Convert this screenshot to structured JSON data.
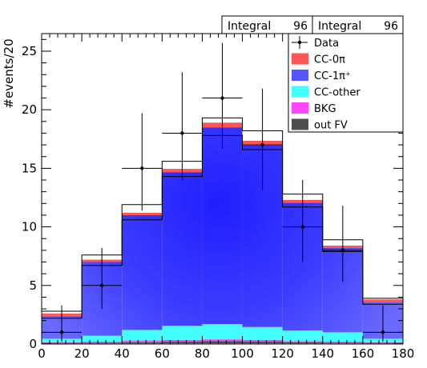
{
  "stat_boxes": [
    {
      "label": "Integral",
      "value": "96"
    },
    {
      "label": "Integral",
      "value": "96"
    }
  ],
  "chart_data": {
    "type": "bar",
    "stacked": true,
    "xlabel": "",
    "ylabel": "#events/20",
    "xlim": [
      0,
      180
    ],
    "ylim": [
      0,
      26.5
    ],
    "x_ticks": [
      0,
      20,
      40,
      60,
      80,
      100,
      120,
      140,
      160,
      180
    ],
    "y_ticks": [
      0,
      5,
      10,
      15,
      20,
      25
    ],
    "bin_edges": [
      0,
      20,
      40,
      60,
      80,
      100,
      120,
      140,
      160,
      180
    ],
    "series": [
      {
        "name": "out FV",
        "color": "#4d4d4d",
        "values": [
          0.1,
          0.1,
          0.15,
          0.2,
          0.25,
          0.2,
          0.15,
          0.1,
          0.1
        ]
      },
      {
        "name": "BKG",
        "color": "#ff44ff",
        "values": [
          0.05,
          0.1,
          0.15,
          0.15,
          0.15,
          0.15,
          0.1,
          0.1,
          0.05
        ]
      },
      {
        "name": "CC-other",
        "color": "#44ffff",
        "values": [
          0.3,
          0.5,
          0.9,
          1.2,
          1.3,
          1.1,
          0.9,
          0.8,
          0.3
        ]
      },
      {
        "name": "CC-1π⁺",
        "color": "#5555ff",
        "values": [
          1.95,
          6.3,
          9.8,
          13.1,
          16.8,
          15.5,
          10.9,
          7.2,
          3.15
        ]
      },
      {
        "name": "CC-0π",
        "color": "#ff5555",
        "values": [
          0.2,
          0.2,
          0.2,
          0.3,
          0.4,
          0.4,
          0.25,
          0.2,
          0.2
        ]
      }
    ],
    "total_outline": [
      2.8,
      7.6,
      11.9,
      15.6,
      19.3,
      18.2,
      12.8,
      8.9,
      3.9
    ],
    "lower_outline": [
      2.2,
      6.7,
      10.6,
      14.3,
      17.8,
      16.6,
      11.7,
      7.9,
      3.4
    ],
    "data": {
      "name": "Data",
      "x": [
        10,
        30,
        50,
        70,
        90,
        110,
        130,
        150,
        170
      ],
      "y": [
        1,
        5,
        15,
        18,
        21,
        17,
        10,
        8,
        1
      ],
      "yerr_low": [
        0.8,
        2.0,
        3.6,
        4.0,
        4.3,
        3.8,
        3.0,
        2.7,
        0.8
      ],
      "yerr_high": [
        2.3,
        3.2,
        4.7,
        5.2,
        4.7,
        4.8,
        4.0,
        3.8,
        2.3
      ],
      "xerr": 10
    },
    "legend": {
      "placement": "top-right",
      "entries": [
        {
          "name": "Data",
          "kind": "marker"
        },
        {
          "name": "CC-0π",
          "color": "#ff5555"
        },
        {
          "name": "CC-1π⁺",
          "color": "#5555ff"
        },
        {
          "name": "CC-other",
          "color": "#44ffff"
        },
        {
          "name": "BKG",
          "color": "#ff44ff"
        },
        {
          "name": "out FV",
          "color": "#4d4d4d"
        }
      ]
    }
  }
}
